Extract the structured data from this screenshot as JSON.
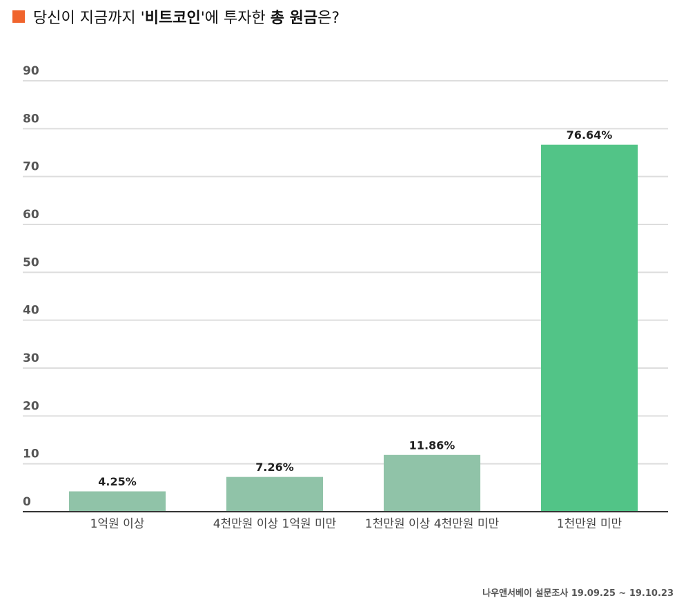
{
  "chart_data": {
    "type": "bar",
    "title_parts": [
      {
        "text": "당신이 지금까지 '",
        "bold": false
      },
      {
        "text": "비트코인",
        "bold": true
      },
      {
        "text": "'에 투자한 ",
        "bold": false
      },
      {
        "text": "총 원금",
        "bold": true
      },
      {
        "text": "은?",
        "bold": false
      }
    ],
    "categories": [
      "1억원 이상",
      "4천만원 이상 1억원 미만",
      "1천만원 이상 4천만원 미만",
      "1천만원 미만"
    ],
    "values": [
      4.25,
      7.26,
      11.86,
      76.64
    ],
    "value_labels": [
      "4.25%",
      "7.26%",
      "11.86%",
      "76.64%"
    ],
    "colors": [
      "#90c3a8",
      "#90c3a8",
      "#90c3a8",
      "#52c487"
    ],
    "ylim": [
      0,
      90
    ],
    "yticks": [
      0,
      10,
      20,
      30,
      40,
      50,
      60,
      70,
      80,
      90
    ],
    "grid": true,
    "source": "나우앤서베이 설문조사 19.09.25 ~ 19.10.23"
  }
}
